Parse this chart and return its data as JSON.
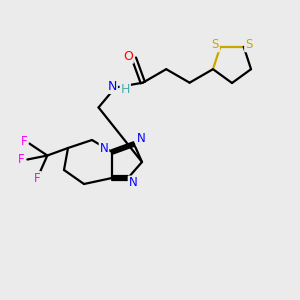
{
  "bg_color": "#ebebeb",
  "atom_colors": {
    "S": "#c8a800",
    "N": "#0000ff",
    "O": "#ff0000",
    "H": "#4aabab",
    "F": "#ff00ff",
    "C": "#000000"
  },
  "figsize": [
    3.0,
    3.0
  ],
  "dpi": 100,
  "lw": 1.6
}
